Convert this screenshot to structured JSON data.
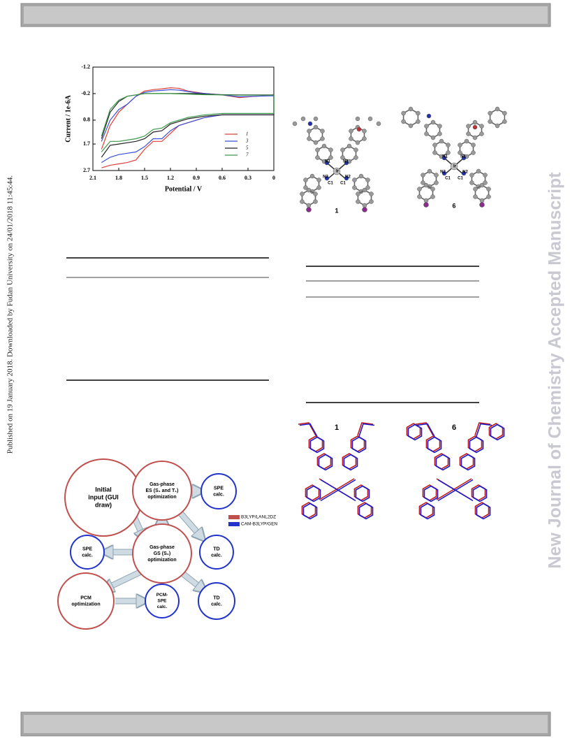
{
  "side_note": "Published on 19 January 2018. Downloaded by Fudan University on 24/01/2018 11:45:44.",
  "watermark": "New Journal of Chemistry Accepted Manuscript",
  "chart_data": {
    "type": "line",
    "x_label": "Potential / V",
    "y_label": "Current / 1e-6A",
    "x": [
      2.0,
      1.9,
      1.8,
      1.7,
      1.6,
      1.5,
      1.4,
      1.3,
      1.2,
      1.1,
      1.0,
      0.9,
      0.8,
      0.6,
      0.4,
      0.2,
      0.0,
      0.0,
      0.2,
      0.4,
      0.6,
      0.8,
      0.9,
      1.0,
      1.1,
      1.2,
      1.3,
      1.4,
      1.5,
      1.6,
      1.7,
      1.8,
      1.9,
      2.0
    ],
    "series": [
      {
        "name": "1",
        "color": "#e0403a",
        "values": [
          1.9,
          1.0,
          0.5,
          0.2,
          -0.1,
          -0.3,
          -0.35,
          -0.38,
          -0.42,
          -0.4,
          -0.3,
          -0.25,
          -0.2,
          -0.15,
          -0.05,
          -0.1,
          -0.15,
          0.6,
          0.6,
          0.6,
          0.6,
          0.7,
          0.8,
          0.9,
          1.0,
          1.3,
          1.6,
          1.6,
          1.9,
          2.3,
          2.4,
          2.45,
          2.5,
          2.6
        ]
      },
      {
        "name": "3",
        "color": "#3a4fd8",
        "values": [
          1.6,
          0.8,
          0.4,
          0.2,
          -0.1,
          -0.25,
          -0.3,
          -0.32,
          -0.35,
          -0.33,
          -0.28,
          -0.23,
          -0.2,
          -0.15,
          -0.08,
          -0.1,
          -0.12,
          0.6,
          0.6,
          0.6,
          0.6,
          0.7,
          0.8,
          0.9,
          1.0,
          1.2,
          1.5,
          1.5,
          1.8,
          2.0,
          2.05,
          2.1,
          2.2,
          2.4
        ]
      },
      {
        "name": "5",
        "color": "#222222",
        "values": [
          1.5,
          0.5,
          0.1,
          -0.1,
          -0.15,
          -0.2,
          -0.2,
          -0.2,
          -0.2,
          -0.2,
          -0.2,
          -0.2,
          -0.18,
          -0.16,
          -0.15,
          -0.15,
          -0.15,
          0.6,
          0.6,
          0.6,
          0.6,
          0.65,
          0.7,
          0.75,
          0.85,
          0.95,
          1.2,
          1.25,
          1.5,
          1.6,
          1.65,
          1.7,
          1.75,
          2.2
        ]
      },
      {
        "name": "7",
        "color": "#3a9a4a",
        "values": [
          1.4,
          0.4,
          0.05,
          -0.1,
          -0.15,
          -0.2,
          -0.2,
          -0.2,
          -0.2,
          -0.19,
          -0.18,
          -0.17,
          -0.16,
          -0.15,
          -0.14,
          -0.14,
          -0.14,
          0.55,
          0.55,
          0.55,
          0.55,
          0.6,
          0.65,
          0.7,
          0.8,
          0.9,
          1.1,
          1.15,
          1.4,
          1.5,
          1.55,
          1.6,
          1.6,
          2.0
        ]
      }
    ],
    "xlim": [
      2.1,
      0
    ],
    "ylim": [
      2.7,
      -1.2
    ],
    "xticks": [
      2.1,
      1.8,
      1.5,
      1.2,
      0.9,
      0.6,
      0.3,
      0
    ],
    "yticks": [
      -1.2,
      -0.2,
      0.8,
      1.7,
      2.7
    ],
    "legend": "lower right"
  },
  "structures": [
    {
      "label": "1",
      "atoms": [
        "N1",
        "N1",
        "N2",
        "N2",
        "C1",
        "C1",
        "Ir"
      ]
    },
    {
      "label": "6",
      "atoms": [
        "N1",
        "N1",
        "N2",
        "N2",
        "C1",
        "C1",
        "Ir"
      ]
    }
  ],
  "flowchart": {
    "nodes": [
      {
        "lines": [
          "Initial",
          "input (GUI",
          "draw)"
        ]
      },
      {
        "lines": [
          "Gas-phase",
          "ES (S₁ and T₁)",
          "optimization"
        ]
      },
      {
        "lines": [
          "SPE",
          "calc."
        ]
      },
      {
        "lines": [
          "Gas-phase",
          "GS (S₀)",
          "optimization"
        ]
      },
      {
        "lines": [
          "SPE",
          "calc."
        ]
      },
      {
        "lines": [
          "TD",
          "calc."
        ]
      },
      {
        "lines": [
          "PCM",
          "optimization"
        ]
      },
      {
        "lines": [
          "PCM-",
          "SPE",
          "calc."
        ]
      },
      {
        "lines": [
          "TD",
          "calc."
        ]
      }
    ],
    "legend": [
      "B3LYP/LANL2DZ",
      "CAM-B3LYP/GEN"
    ]
  },
  "overlay_figure": {
    "labels": [
      "1",
      "6"
    ]
  }
}
